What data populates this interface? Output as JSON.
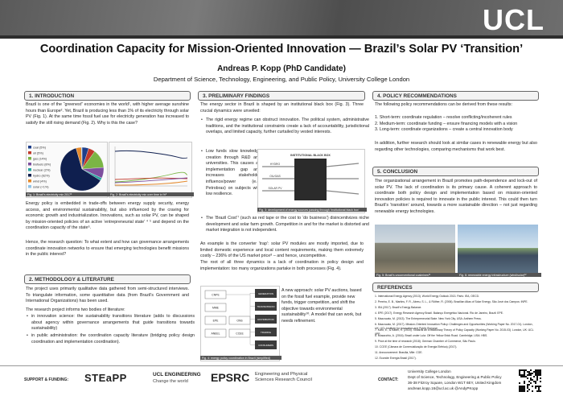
{
  "header": {
    "logo": "UCL",
    "title": "Coordination Capacity for Mission-Oriented Innovation — Brazil’s Solar PV ‘Transition’",
    "author": "Andreas P. Kopp (PhD Candidate)",
    "affiliation": "Department of Science, Technology, Engineering, and Public Policy, University College London"
  },
  "sections": [
    {
      "heading": "1. INTRODUCTION",
      "paragraphs": [
        "Brazil is one of the “greenest” economies in the world¹, with higher average sunshine hours than Europe². Yet, Brazil is producing less than 1% of its electricity through solar PV (Fig. 1). At the same time fossil fuel use for electricity generation has increased to satisfy the still rising demand (Fig. 2). Why is this the case?",
        "Energy policy is embedded in trade-offs between energy supply security, energy access, and environmental sustainability, but also influenced by the craving for economic growth and industrialization. Innovations, such as solar PV, can be shaped by mission-oriented policies of an active ‘entrepreneurial state’ ⁴ ⁵ and depend on the coordination capacity of the state⁶.",
        "Hence, the research question: To what extent and how can governance arrangements coordinate innovation networks to ensure that emerging technologies benefit missions in the public interest?"
      ],
      "figure1": {
        "caption": "Fig. 1: Brazil’s electricity mix 2017³",
        "slices": [
          {
            "label": "coal (5%)",
            "value": 5,
            "color": "#1f3f8a"
          },
          {
            "label": "oil (5%)",
            "value": 5,
            "color": "#c0392b"
          },
          {
            "label": "gas (14%)",
            "value": 14,
            "color": "#7bb545"
          },
          {
            "label": "biofuels (8%)",
            "value": 8,
            "color": "#7d4f9e"
          },
          {
            "label": "nuclear (2%)",
            "value": 2,
            "color": "#2aa5a0"
          },
          {
            "label": "hydro (62%)",
            "value": 62,
            "color": "#0f1f4f"
          },
          {
            "label": "wind (4%)",
            "value": 4,
            "color": "#e58a2c"
          },
          {
            "label": "solar (<1%)",
            "value": 0.5,
            "color": "#8fc3e8"
          }
        ]
      },
      "figure2": {
        "caption": "Fig. 2: Brazil’s electricity mix over time in %³"
      }
    },
    {
      "heading": "2. METHODOLOGY & LITERATURE",
      "paragraphs": [
        "The project uses primarily qualitative data gathered from semi-structured interviews. To triangulate information, some quantitative data (from Brazil’s Government and International Organizations) has been used.",
        "The research project informs two bodies of literature:"
      ],
      "bullets": [
        "in innovation science: the sustainability transitions literature (adds to discussions about agency within governance arrangements that guide transitions towards sustainability)",
        "in public administration: the coordination capacity literature (bridging policy design coordination and implementation coordination)."
      ]
    },
    {
      "heading": "3. PRELIMINARY FINDINGS",
      "paragraphs": [
        "The energy sector in Brazil is shaped by an institutional black box (Fig. 3). Three crucial dynamics were unveiled:",
        "An example is the converter ‘trap’: solar PV modules are mostly imported, due to limited domestic experience and local content requirements, making them extremely costly – 236% of the US market price⁸ – and hence, uncompetitive.",
        "The root of all three dynamics is a lack of coordination in policy design and implementation: too many organizations partake in both processes (Fig. 4).",
        "A new approach: solar PV auctions, based on the fossil fuel example, provide new funds, trigger competition, and shift the objective towards environmental sustainability¹⁰. A model that can work, but needs refinement."
      ],
      "bullets": [
        "The rigid energy regime can obstruct innovation. The political system, administrative traditions, and the institutional constraints create a lack of accountability, jurisdictional overlaps, and limited capacity, further curtailed by vested interests.",
        "Low funds slow knowledge creation through R&D and universities. This causes an implementation gap and increases stakeholder influence/power (e.g. Petrobras) on subjects with low resilience.",
        "The ‘Brazil Cost’⁷ (such as red tape or the cost to ‘do business’) disincentivizes niche development and solar farm growth. Competition in and for the market is distorted and market integration is not independent."
      ],
      "figure3": {
        "caption": "Fig. 3: development of energy sources passing through ‘institutional black box’",
        "labels": [
          "INSTITUTIONAL BLACK BOX",
          "HYDRO",
          "OIL/GAS",
          "SOLAR PV"
        ]
      },
      "figure4": {
        "caption": "Fig. 4: energy policy coordination in Brazil (simplified)",
        "labels": [
          "CNPE",
          "MME",
          "EPE",
          "ANEEL",
          "ONS",
          "CCEE"
        ],
        "sectors": [
          "GENERATION",
          "TRANSMISSION",
          "DISTRIBUTION",
          "TRADING",
          "CONSUMERS"
        ]
      }
    },
    {
      "heading": "4. POLICY RECOMMENDATIONS",
      "paragraphs": [
        "The following policy recommendations can be derived from these results:",
        "In addition, further research should look at similar cases in renewable energy but also regarding other technologies, comparing mechanisms that work best."
      ],
      "list": [
        "1. Short-term: coordinate regulation – resolve conflicting/incoherent rules",
        "2. Medium-term: coordinate funding – ensure financing models with a vision",
        "3. Long-term: coordinate organizations – create a central innovation body"
      ]
    },
    {
      "heading": "5. CONCLUSION",
      "paragraphs": [
        "The organizational arrangement in Brazil promotes path-dependence and lock-out of solar PV. The lack of coordination is its primary cause. A coherent approach to coordinate both policy design and implementation based on mission-oriented innovation policies is required to innovate in the public interest. This could then turn Brazil’s ‘transition’ around, towards a more sustainable direction – not just regarding renewable energy technologies."
      ],
      "captions": [
        "Fig. 5: Brazil’s unconventional coalmines¹¹",
        "Fig. 6: renewable energy infrastructure (wind/solar)¹²"
      ]
    },
    {
      "heading": "REFERENCES",
      "items": [
        "1. International Energy Agency (2013). World Energy Outlook 2013. Paris: IEA, OECD.",
        "2. Pereira, E. B., Martins, F. R., Abreu, S. L., & Rüther, R. (2006). Brazilian Atlas of Solar Energy. São José dos Campos: INPE.",
        "3. IEA (2017). Brazil’s Energy Balance.",
        "4. EPE (2017). Energy Research Agency Brazil. Balanço Energético Nacional. Rio de Janeiro, Brazil: EPE.",
        "5. Mazzucato, M. (2013). The Entrepreneurial State. New York City, USA: Anthem Press.",
        "6. Mazzucato, M. (2017). Mission-Oriented Innovation Policy: Challenges and Opportunities (Working Paper No. 2017-01). London, UK: UCL Institute for Innovation and Public Purpose.",
        "7. Karo, E., & Kattel, R. (2015). Towards an Evolutionary Theory of Policy Capacity (Working Paper No. 2015-03). London, UK: UCL IIPP.",
        "8. Musacchio, A. (2016). Brazil under Lula: Off the Yellow Brick Road. Cambridge, USA: HBS.",
        "9. Price at the time of research (2018). German Chamber of Commerce, São Paulo.",
        "10. CCEE (Câmara de Comercialização de Energia Elétrica) (2017).",
        "11. Announcement: Brasília, Mile: CGE.",
        "12. Ecorsite Energia Brasil (2017)."
      ]
    }
  ],
  "footer": {
    "support": "SUPPORT & FUNDING:",
    "logos": [
      "STEaPP",
      "UCL ENGINEERING",
      "Change the world",
      "EPSRC",
      "Engineering and Physical Sciences Research Council"
    ],
    "contact_label": "CONTACT:",
    "contact": [
      "University College London",
      "Dept of Science, Technology, Engineering & Public Policy",
      "36-38 Fitzroy Square, London W1T 6EY, United Kingdom",
      "andreas.kopp.16@ucl.ac.uk   @AndyPKopp"
    ]
  }
}
